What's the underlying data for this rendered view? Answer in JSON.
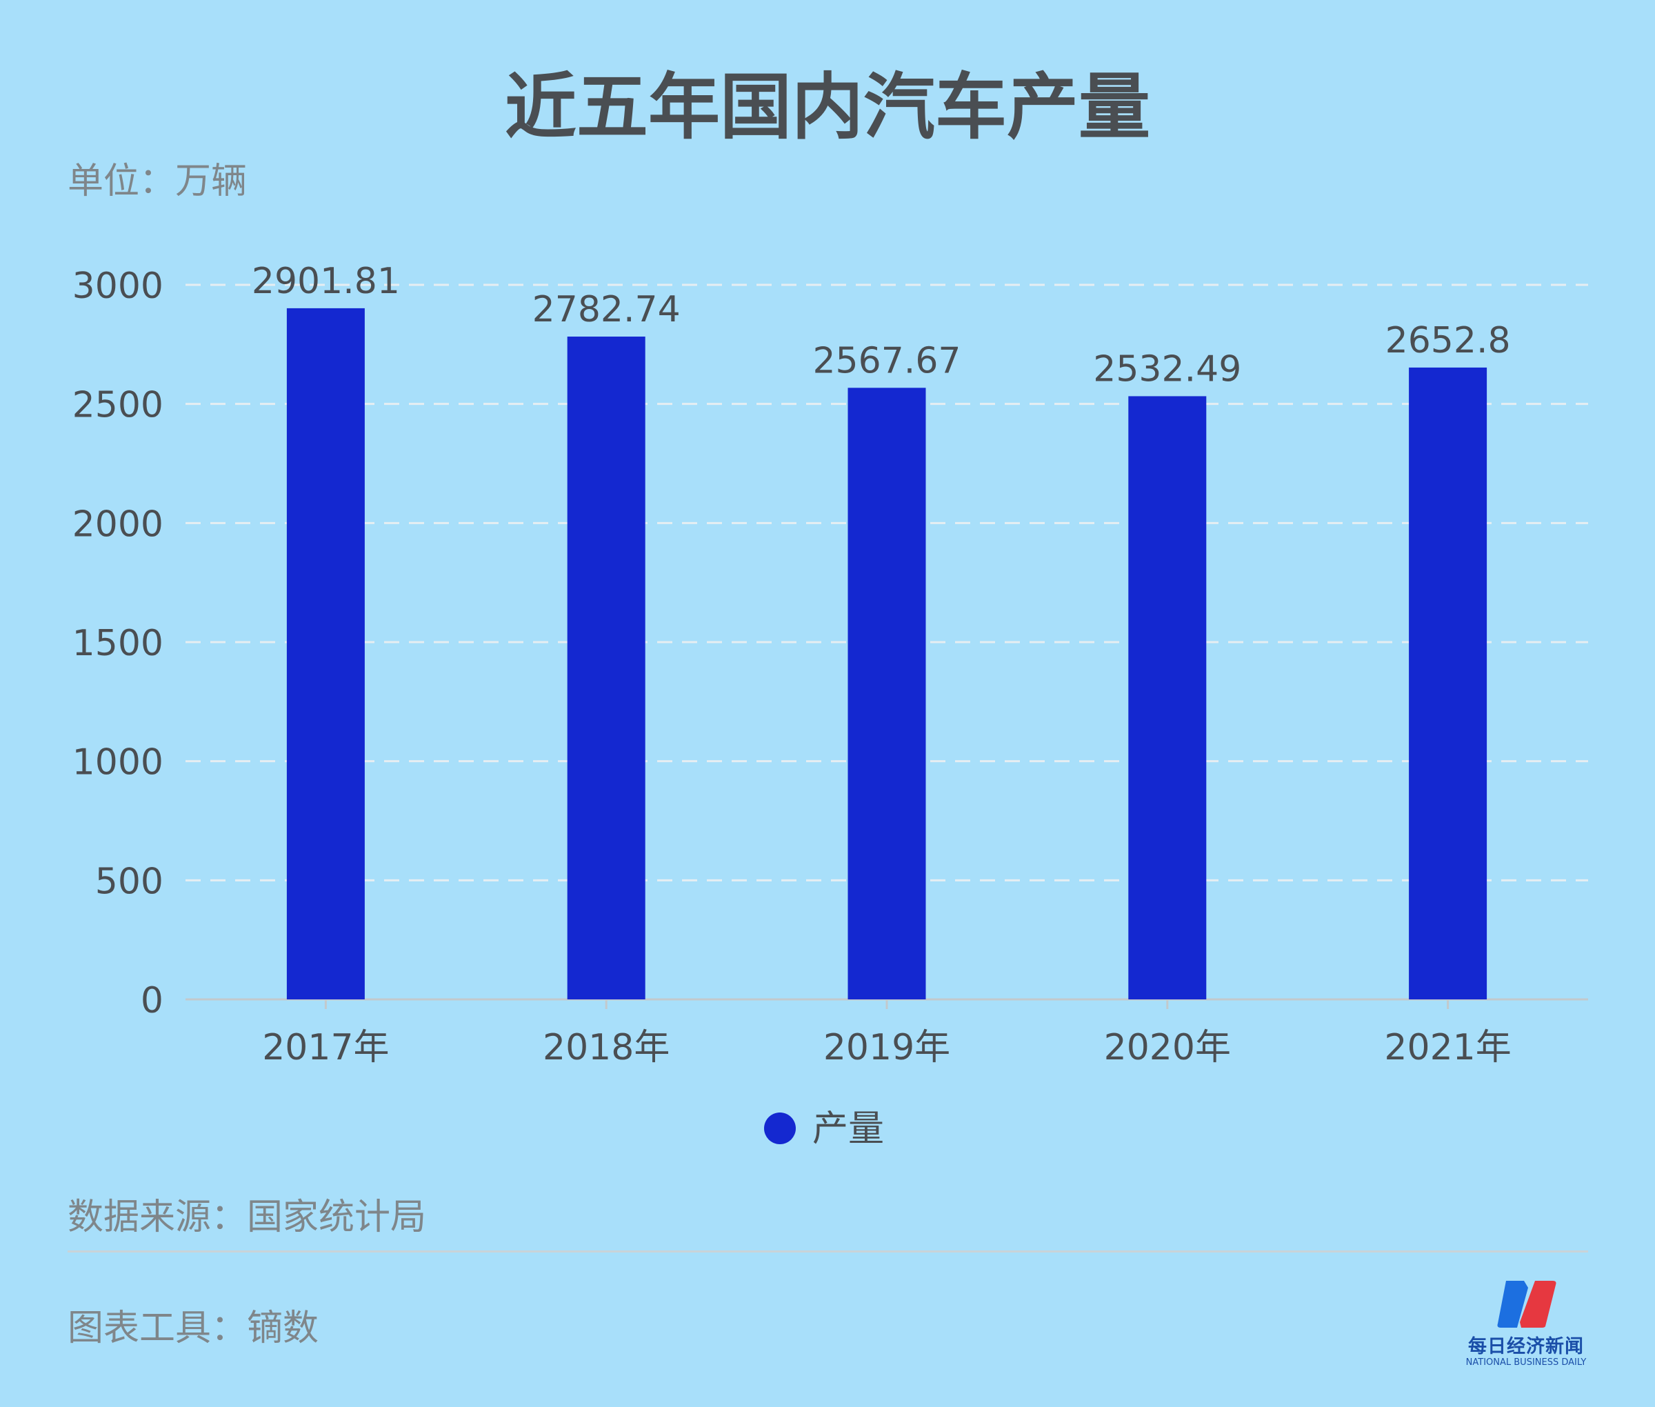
{
  "title": "近五年国内汽车产量",
  "unit_label": "单位：万辆",
  "source_label": "数据来源：国家统计局",
  "tool_label": "图表工具：镝数",
  "logo": {
    "cn": "每日经济新闻",
    "en": "NATIONAL BUSINESS DAILY"
  },
  "colors": {
    "background": "#a8dffa",
    "bar": "#1428d0",
    "text": "#4a4e52",
    "muted": "#7f868a"
  },
  "chart_data": {
    "type": "bar",
    "title": "近五年国内汽车产量",
    "categories": [
      "2017年",
      "2018年",
      "2019年",
      "2020年",
      "2021年"
    ],
    "series": [
      {
        "name": "产量",
        "values": [
          2901.81,
          2782.74,
          2567.67,
          2532.49,
          2652.8
        ]
      }
    ],
    "value_labels": [
      "2901.81",
      "2782.74",
      "2567.67",
      "2532.49",
      "2652.8"
    ],
    "ylim": [
      0,
      3000
    ],
    "yticks": [
      0,
      500,
      1000,
      1500,
      2000,
      2500,
      3000
    ],
    "grid": true,
    "legend": "bottom-center"
  }
}
